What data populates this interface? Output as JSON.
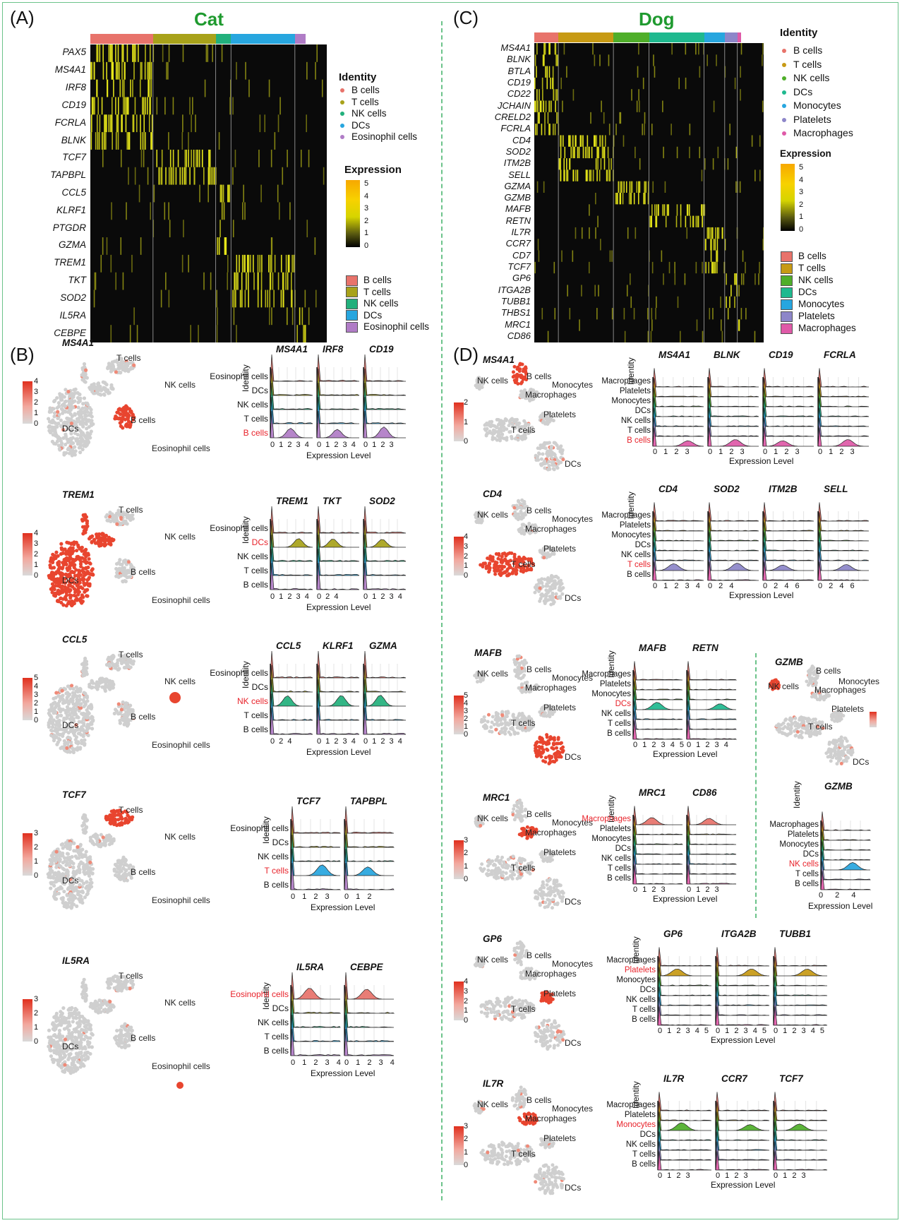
{
  "panels": {
    "A": {
      "letter": "(A)",
      "species": "Cat",
      "genes": [
        "PAX5",
        "MS4A1",
        "IRF8",
        "CD19",
        "FCRLA",
        "BLNK",
        "TCF7",
        "TAPBPL",
        "CCL5",
        "KLRF1",
        "PTGDR",
        "GZMA",
        "TREM1",
        "TKT",
        "SOD2",
        "IL5RA",
        "CEBPE"
      ],
      "identity_title": "Identity",
      "identities": [
        "B cells",
        "T cells",
        "NK cells",
        "DCs",
        "Eosinophil cells"
      ],
      "expression_title": "Expression",
      "expression_ticks": [
        "5",
        "4",
        "3",
        "2",
        "1",
        "0"
      ]
    },
    "B": {
      "letter": "(B)"
    },
    "C": {
      "letter": "(C)",
      "species": "Dog",
      "genes": [
        "MS4A1",
        "BLNK",
        "BTLA",
        "CD19",
        "CD22",
        "JCHAIN",
        "CRELD2",
        "FCRLA",
        "CD4",
        "SOD2",
        "ITM2B",
        "SELL",
        "GZMA",
        "GZMB",
        "MAFB",
        "RETN",
        "IL7R",
        "CCR7",
        "CD7",
        "TCF7",
        "GP6",
        "ITGA2B",
        "TUBB1",
        "THBS1",
        "MRC1",
        "CD86"
      ],
      "identity_title": "Identity",
      "identities": [
        "B cells",
        "T cells",
        "NK cells",
        "DCs",
        "Monocytes",
        "Platelets",
        "Macrophages"
      ],
      "expression_title": "Expression",
      "expression_ticks": [
        "5",
        "4",
        "3",
        "2",
        "1",
        "0"
      ]
    },
    "D": {
      "letter": "(D)"
    }
  },
  "colors": {
    "cat": [
      "#e8736b",
      "#a8a21a",
      "#22b07c",
      "#27a6df",
      "#b07cc6"
    ],
    "dog": [
      "#e8736b",
      "#c79a14",
      "#4fae2a",
      "#1fb98f",
      "#27a6df",
      "#8d86c9",
      "#df5aa8"
    ]
  },
  "cat_rows": [
    {
      "umap_gene": "MS4A1",
      "umap_labels": [
        "T cells",
        "NK cells",
        "B cells",
        "DCs",
        "Eosinophil cells"
      ],
      "scale": [
        "4",
        "3",
        "2",
        "1",
        "0"
      ],
      "ridge_genes": [
        "MS4A1",
        "IRF8",
        "CD19"
      ],
      "ridge_rows": [
        "Eosinophil cells",
        "DCs",
        "NK cells",
        "T cells",
        "B cells"
      ],
      "highlight": "B cells",
      "ticks": [
        "0 1 2 3 4",
        "0 1 2 3 4",
        "0 1 2 3"
      ],
      "xlabel": "Expression Level",
      "ylabel": "Identity"
    },
    {
      "umap_gene": "TREM1",
      "umap_labels": [
        "T cells",
        "NK cells",
        "DCs",
        "B cells",
        "Eosinophil cells"
      ],
      "scale": [
        "4",
        "3",
        "2",
        "1",
        "0"
      ],
      "ridge_genes": [
        "TREM1",
        "TKT",
        "SOD2"
      ],
      "ridge_rows": [
        "Eosinophil cells",
        "DCs",
        "NK cells",
        "T cells",
        "B cells"
      ],
      "highlight": "DCs",
      "ticks": [
        "0 1 2 3 4",
        "0 2 4",
        "0 1 2 3 4"
      ],
      "xlabel": "Expression Level",
      "ylabel": "Identity"
    },
    {
      "umap_gene": "CCL5",
      "umap_labels": [
        "T cells",
        "NK cells",
        "DCs",
        "B cells",
        "Eosinophil cells"
      ],
      "scale": [
        "5",
        "4",
        "3",
        "2",
        "1",
        "0"
      ],
      "ridge_genes": [
        "CCL5",
        "KLRF1",
        "GZMA"
      ],
      "ridge_rows": [
        "Eosinophil cells",
        "DCs",
        "NK cells",
        "T cells",
        "B cells"
      ],
      "highlight": "NK cells",
      "ticks": [
        "0 2 4",
        "0 1 2 3 4",
        "0 1 2 3 4"
      ],
      "xlabel": "Expression Level",
      "ylabel": "Identity"
    },
    {
      "umap_gene": "TCF7",
      "umap_labels": [
        "T cells",
        "NK cells",
        "DCs",
        "B cells",
        "Eosinophil cells"
      ],
      "scale": [
        "3",
        "2",
        "1",
        "0"
      ],
      "ridge_genes": [
        "TCF7",
        "TAPBPL"
      ],
      "ridge_rows": [
        "Eosinophil cells",
        "DCs",
        "NK cells",
        "T cells",
        "B cells"
      ],
      "highlight": "T cells",
      "ticks": [
        "0 1 2 3",
        "0 1 2"
      ],
      "xlabel": "Expression Level",
      "ylabel": "Identity"
    },
    {
      "umap_gene": "IL5RA",
      "umap_labels": [
        "T cells",
        "NK cells",
        "DCs",
        "B cells",
        "Eosinophil cells"
      ],
      "scale": [
        "3",
        "2",
        "1",
        "0"
      ],
      "ridge_genes": [
        "IL5RA",
        "CEBPE"
      ],
      "ridge_rows": [
        "Eosinophil cells",
        "DCs",
        "NK cells",
        "T cells",
        "B cells"
      ],
      "highlight": "Eosinophil cells",
      "ticks": [
        "0 1 2 3 4",
        "0 1 2 3 4"
      ],
      "xlabel": "Expression Level",
      "ylabel": "Identity"
    }
  ],
  "dog_rows": [
    {
      "umap_gene": "MS4A1",
      "umap_labels": [
        "NK cells",
        "B cells",
        "Monocytes",
        "Macrophages",
        "Platelets",
        "T cells",
        "DCs"
      ],
      "scale": [
        "2",
        "1",
        "0"
      ],
      "ridge_genes": [
        "MS4A1",
        "BLNK",
        "CD19",
        "FCRLA"
      ],
      "highlight": "B cells",
      "ticks": [
        "0 1 2 3",
        "0 1 2 3",
        "0 1 2 3",
        "0 1 2 3"
      ]
    },
    {
      "umap_gene": "CD4",
      "umap_labels": [
        "NK cells",
        "B cells",
        "Monocytes",
        "Macrophages",
        "Platelets",
        "T cells",
        "DCs"
      ],
      "scale": [
        "4",
        "3",
        "2",
        "1",
        "0"
      ],
      "ridge_genes": [
        "CD4",
        "SOD2",
        "ITM2B",
        "SELL"
      ],
      "highlight": "T cells",
      "ticks": [
        "0 1 2 3 4",
        "0 2 4",
        "0 2 4 6",
        "0 2 4 6"
      ]
    },
    {
      "umap_gene": "MAFB",
      "umap_labels": [
        "NK cells",
        "B cells",
        "Monocytes",
        "Macrophages",
        "Platelets",
        "T cells",
        "DCs"
      ],
      "scale": [
        "5",
        "4",
        "3",
        "2",
        "1",
        "0"
      ],
      "ridge_genes": [
        "MAFB",
        "RETN"
      ],
      "highlight": "DCs",
      "ticks": [
        "0 1 2 3 4 5",
        "0 1 2 3 4"
      ]
    },
    {
      "umap_gene": "MRC1",
      "umap_labels": [
        "NK cells",
        "B cells",
        "Monocytes",
        "Macrophages",
        "Platelets",
        "T cells",
        "DCs"
      ],
      "scale": [
        "3",
        "2",
        "1",
        "0"
      ],
      "ridge_genes": [
        "MRC1",
        "CD86"
      ],
      "highlight": "Macrophages",
      "ticks": [
        "0 1 2 3",
        "0 1 2 3"
      ]
    },
    {
      "umap_gene": "GP6",
      "umap_labels": [
        "NK cells",
        "B cells",
        "Monocytes",
        "Macrophages",
        "Platelets",
        "T cells",
        "DCs"
      ],
      "scale": [
        "4",
        "3",
        "2",
        "1",
        "0"
      ],
      "ridge_genes": [
        "GP6",
        "ITGA2B",
        "TUBB1"
      ],
      "highlight": "Platelets",
      "ticks": [
        "0 1 2 3 4 5",
        "0 1 2 3 4 5",
        "0 1 2 3 4 5"
      ]
    },
    {
      "umap_gene": "IL7R",
      "umap_labels": [
        "NK cells",
        "B cells",
        "Monocytes",
        "Macrophages",
        "Platelets",
        "T cells",
        "DCs"
      ],
      "scale": [
        "3",
        "2",
        "1",
        "0"
      ],
      "ridge_genes": [
        "IL7R",
        "CCR7",
        "TCF7"
      ],
      "highlight": "Monocytes",
      "ticks": [
        "0 1 2 3",
        "0 1 2 3",
        "0 1 2 3"
      ]
    }
  ],
  "dog_ridge_rows": [
    "Macrophages",
    "Platelets",
    "Monocytes",
    "DCs",
    "NK cells",
    "T cells",
    "B cells"
  ],
  "gzmb": {
    "umap_gene": "GZMB",
    "umap_labels": [
      "NK cells",
      "B cells",
      "Monocytes",
      "Macrophages",
      "Platelets",
      "T cells",
      "DCs"
    ],
    "ridge_gene": "GZMB",
    "highlight": "NK cells",
    "ticks": "0 2 4"
  },
  "xlabel": "Expression Level",
  "ylabel": "Identity"
}
